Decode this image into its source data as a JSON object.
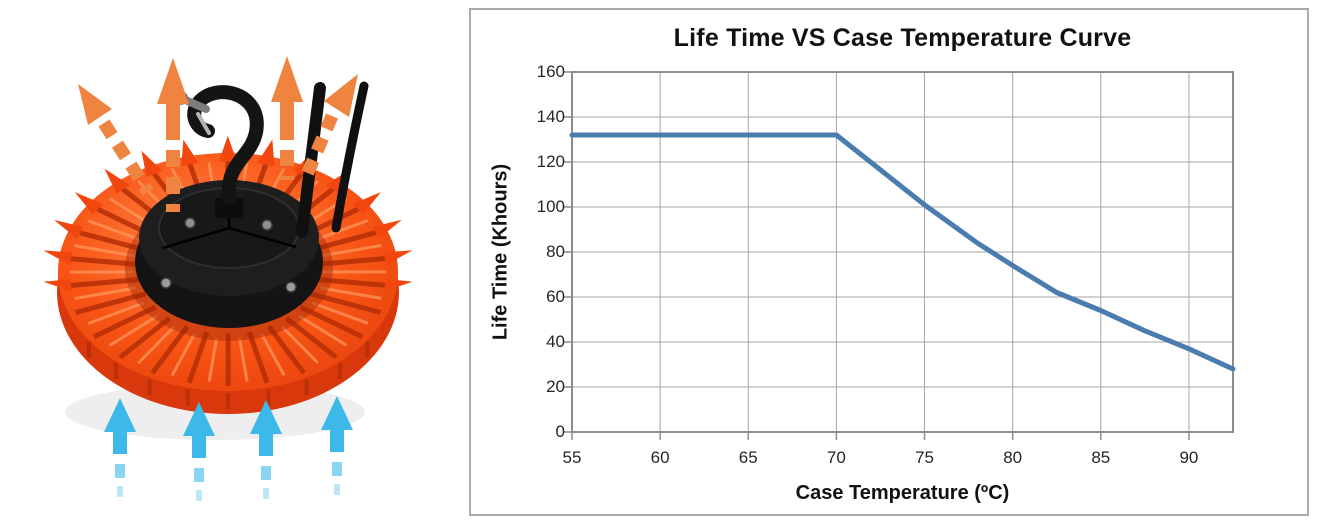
{
  "product_panel": {
    "icons": [
      "heat-arrow-icon",
      "cool-air-arrow-icon",
      "mounting-hook-icon"
    ],
    "heat_arrow_color": "#ef8440",
    "airflow_arrow_color": "#3cb9e9",
    "heatsink_color": "#f1470f",
    "heatsink_highlight": "#ff9a60",
    "heatsink_shadow": "#b52f06",
    "housing_color": "#1e1e1e",
    "cable_color": "#111111"
  },
  "chart_panel": {
    "border_color": "#aaaaaa",
    "background": "#ffffff"
  },
  "chart_data": {
    "type": "line",
    "title": "Life Time VS Case Temperature Curve",
    "xlabel": "Case Temperature (ºC)",
    "ylabel": "Life Time (Khours)",
    "xlim": [
      55,
      92.5
    ],
    "ylim": [
      0,
      160
    ],
    "x_ticks": [
      55,
      60,
      65,
      70,
      75,
      80,
      85,
      90
    ],
    "y_ticks": [
      0,
      20,
      40,
      60,
      80,
      100,
      120,
      140,
      160
    ],
    "grid": true,
    "legend": false,
    "line_color": "#4a7dae",
    "line_width": 5,
    "grid_color": "#a6a6a6",
    "axis_color": "#8c8c8c",
    "series": [
      {
        "name": "Life Time",
        "points": [
          [
            55,
            132
          ],
          [
            60,
            132
          ],
          [
            65,
            132
          ],
          [
            70,
            132
          ],
          [
            75,
            101
          ],
          [
            78,
            84
          ],
          [
            80,
            74
          ],
          [
            82.5,
            62
          ],
          [
            85,
            54
          ],
          [
            87.5,
            45
          ],
          [
            90,
            37
          ],
          [
            92.5,
            28
          ]
        ]
      }
    ]
  }
}
